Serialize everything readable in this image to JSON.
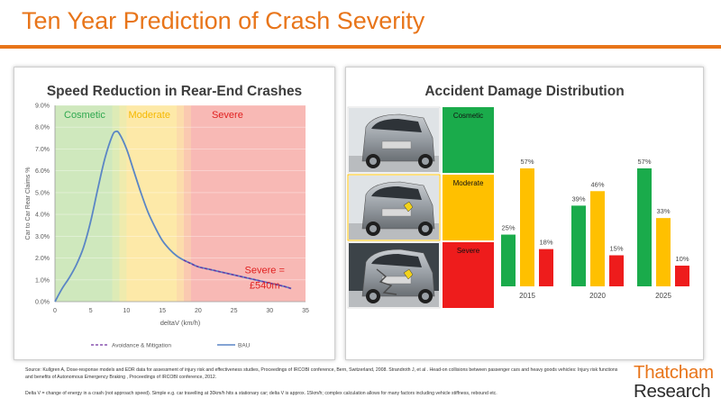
{
  "slide": {
    "title": "Ten Year Prediction of Crash Severity",
    "colors": {
      "accent": "#e8751a",
      "green": "#1aab4b",
      "amber": "#ffc000",
      "red": "#ee1c1c"
    }
  },
  "left_panel": {
    "title": "Speed Reduction in Rear-End Crashes"
  },
  "right_panel": {
    "title": "Accident Damage Distribution"
  },
  "footer": {
    "source": "Source: Kullgren A, Dose-response models and EDR data for assessment of injury risk and effectiveness studies, Proceedings of IRCOBI conference, Bern, Switzerland, 2008.  Strandroth J, et al . Head-on collisions between passenger cars and heavy goods vehicles: Injury risk functions and benefits of Autonomous Emergency Braking , Proceedings of IRCOBI conference,  2012.",
    "note": "Delta V = change of energy in a crash (not approach speed). Simple e.g. car travelling at 30km/h hits a stationary car; delta V is approx. 15km/h; complex calculation allows for many factors including vehicle stiffness, rebound etc."
  },
  "brand": {
    "line1": "Thatcham",
    "line2": "Research"
  },
  "chart_data": [
    {
      "type": "line",
      "title": "Speed Reduction in Rear-End Crashes",
      "xlabel": "deltaV (km/h)",
      "ylabel": "Car to Car Rear Claims %",
      "xlim": [
        0,
        35
      ],
      "ylim": [
        0,
        9
      ],
      "xticks": [
        "0",
        "5",
        "10",
        "15",
        "20",
        "25",
        "30",
        "35"
      ],
      "yticks": [
        "0.0%",
        "1.0%",
        "2.0%",
        "3.0%",
        "4.0%",
        "5.0%",
        "6.0%",
        "7.0%",
        "8.0%",
        "9.0%"
      ],
      "zones": [
        {
          "label": "Cosmetic",
          "from": 0,
          "to": 9,
          "color": "#cfe8bd",
          "text_color": "#2fa84f"
        },
        {
          "label": "Moderate",
          "from": 9,
          "to": 18,
          "color": "#fde9a8",
          "text_color": "#f5b800"
        },
        {
          "label": "Severe",
          "from": 18,
          "to": 35,
          "color": "#f8b9b5",
          "text_color": "#e02020"
        }
      ],
      "series": [
        {
          "name": "BAU",
          "color": "#5b86c5",
          "x": [
            0,
            1,
            2,
            3,
            4,
            5,
            6,
            7,
            8,
            8.5,
            9,
            10,
            11,
            12,
            13,
            14,
            15,
            16,
            17,
            18,
            19,
            20,
            22,
            24,
            26,
            28,
            30,
            32,
            33
          ],
          "y": [
            0.0,
            0.6,
            1.1,
            1.7,
            2.5,
            3.7,
            5.2,
            6.6,
            7.6,
            7.8,
            7.7,
            7.0,
            6.0,
            5.0,
            4.1,
            3.4,
            2.8,
            2.4,
            2.1,
            1.9,
            1.75,
            1.6,
            1.45,
            1.3,
            1.15,
            1.0,
            0.85,
            0.7,
            0.6
          ]
        },
        {
          "name": "Avoidance & Mitigation",
          "color": "#7030a0",
          "dashed": true,
          "x": [
            18,
            20,
            22,
            24,
            26,
            28,
            30,
            32,
            33
          ],
          "y": [
            1.9,
            1.6,
            1.45,
            1.3,
            1.15,
            1.0,
            0.85,
            0.7,
            0.6
          ]
        }
      ],
      "annotation": {
        "line1": "Severe =",
        "line2": "£540m",
        "color": "#e02020"
      }
    },
    {
      "type": "bar",
      "title": "Accident Damage Distribution",
      "categories": [
        "2015",
        "2020",
        "2025"
      ],
      "series": [
        {
          "name": "Cosmetic",
          "color": "#1aab4b",
          "values": [
            25,
            39,
            57
          ]
        },
        {
          "name": "Moderate",
          "color": "#ffc000",
          "values": [
            57,
            46,
            33
          ]
        },
        {
          "name": "Severe",
          "color": "#ee1c1c",
          "values": [
            18,
            15,
            10
          ]
        }
      ],
      "value_suffix": "%",
      "ylim": [
        0,
        60
      ],
      "severity_labels": [
        {
          "label": "Cosmetic",
          "color": "#1aab4b"
        },
        {
          "label": "Moderate",
          "color": "#ffc000"
        },
        {
          "label": "Severe",
          "color": "#ee1c1c"
        }
      ]
    }
  ]
}
